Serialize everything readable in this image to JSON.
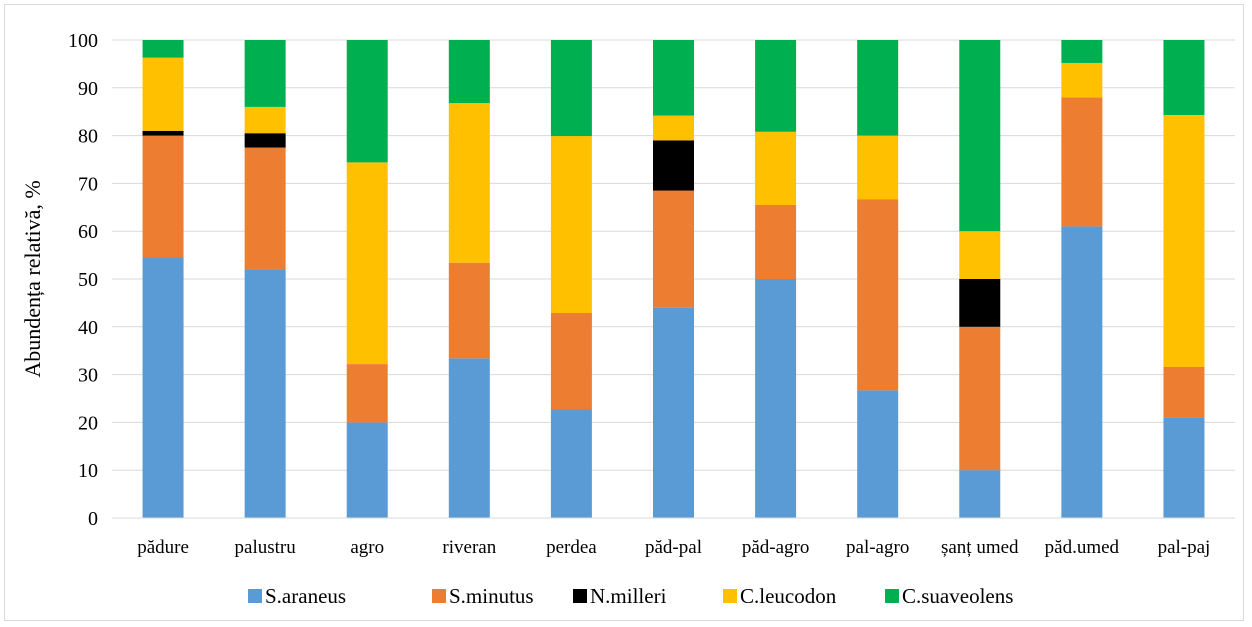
{
  "chart_data": {
    "type": "bar",
    "stacked": true,
    "title": "",
    "xlabel": "",
    "ylabel": "Abundența relativă, %",
    "ylim": [
      0,
      100
    ],
    "yticks": [
      "0",
      "10",
      "20",
      "30",
      "40",
      "50",
      "60",
      "70",
      "80",
      "90",
      "100"
    ],
    "grid": true,
    "legend_position": "bottom",
    "categories": [
      "pădure",
      "palustru",
      "agro",
      "riveran",
      "perdea",
      "păd-pal",
      "păd-agro",
      "pal-agro",
      "șanț umed",
      "păd.umed",
      "pal-paj"
    ],
    "series": [
      {
        "name": "S.araneus",
        "color": "#5b9bd5",
        "values": [
          54.5,
          52.0,
          20.0,
          33.4,
          22.7,
          44.0,
          50.0,
          26.7,
          10.0,
          61.0,
          21.1
        ]
      },
      {
        "name": "S.minutus",
        "color": "#ed7d31",
        "values": [
          25.5,
          25.5,
          12.2,
          20.0,
          20.2,
          24.5,
          15.5,
          40.0,
          30.0,
          27.0,
          10.5
        ]
      },
      {
        "name": "N.milleri",
        "color": "#000000",
        "values": [
          1.0,
          3.0,
          0,
          0,
          0,
          10.5,
          0,
          0,
          10.0,
          0,
          0
        ]
      },
      {
        "name": "C.leucodon",
        "color": "#ffc000",
        "values": [
          15.3,
          5.5,
          42.2,
          33.4,
          37.0,
          5.2,
          15.3,
          13.3,
          10.0,
          7.2,
          52.7
        ]
      },
      {
        "name": "C.suaveolens",
        "color": "#00b050",
        "values": [
          3.7,
          14.0,
          25.6,
          13.2,
          20.1,
          15.8,
          19.2,
          20.0,
          40.0,
          4.8,
          15.7
        ]
      }
    ]
  }
}
